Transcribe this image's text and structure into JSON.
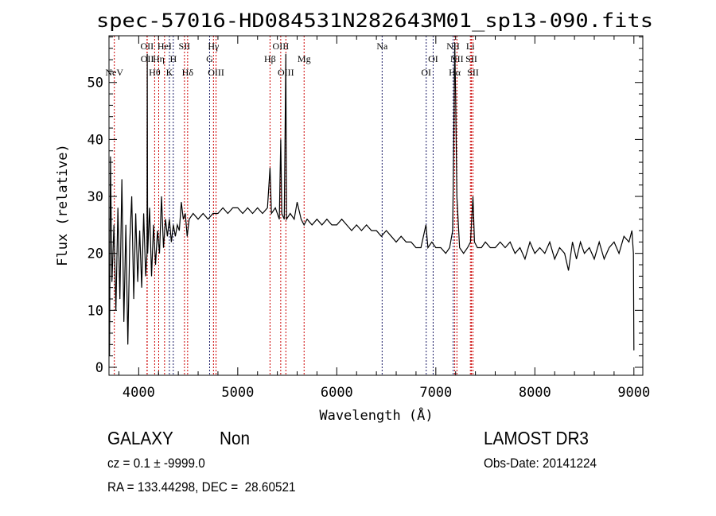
{
  "chart_data": {
    "type": "line",
    "title": "spec-57016-HD084531N282643M01_sp13-090.fits",
    "xlabel": "Wavelength (Å)",
    "ylabel": "Flux (relative)",
    "xlim": [
      3700,
      9090
    ],
    "ylim": [
      -1.4,
      58.2
    ],
    "xticks": [
      4000,
      5000,
      6000,
      7000,
      8000,
      9000
    ],
    "yticks": [
      0,
      10,
      20,
      30,
      40,
      50
    ],
    "grid": false,
    "series": [
      {
        "name": "spectrum",
        "color": "#000000",
        "points": [
          [
            3705,
            2
          ],
          [
            3715,
            37
          ],
          [
            3730,
            15
          ],
          [
            3750,
            25
          ],
          [
            3770,
            10
          ],
          [
            3790,
            28
          ],
          [
            3810,
            12
          ],
          [
            3830,
            33
          ],
          [
            3850,
            8
          ],
          [
            3870,
            25
          ],
          [
            3890,
            4
          ],
          [
            3910,
            22
          ],
          [
            3930,
            30
          ],
          [
            3950,
            12
          ],
          [
            3970,
            27
          ],
          [
            3990,
            15
          ],
          [
            4010,
            24
          ],
          [
            4030,
            14
          ],
          [
            4050,
            27
          ],
          [
            4070,
            16
          ],
          [
            4084,
            20
          ],
          [
            4086,
            55
          ],
          [
            4090,
            20
          ],
          [
            4110,
            28
          ],
          [
            4130,
            16
          ],
          [
            4150,
            25
          ],
          [
            4170,
            18
          ],
          [
            4190,
            24
          ],
          [
            4210,
            20
          ],
          [
            4230,
            30
          ],
          [
            4250,
            21
          ],
          [
            4270,
            26
          ],
          [
            4290,
            23
          ],
          [
            4310,
            26
          ],
          [
            4330,
            22
          ],
          [
            4350,
            25
          ],
          [
            4370,
            23
          ],
          [
            4390,
            25
          ],
          [
            4410,
            24
          ],
          [
            4430,
            29
          ],
          [
            4450,
            26
          ],
          [
            4470,
            27
          ],
          [
            4490,
            23
          ],
          [
            4510,
            26
          ],
          [
            4550,
            27
          ],
          [
            4600,
            26
          ],
          [
            4650,
            27
          ],
          [
            4700,
            26
          ],
          [
            4750,
            27
          ],
          [
            4800,
            27
          ],
          [
            4850,
            28
          ],
          [
            4900,
            27
          ],
          [
            4950,
            28
          ],
          [
            5000,
            28
          ],
          [
            5050,
            27
          ],
          [
            5100,
            28
          ],
          [
            5150,
            27
          ],
          [
            5200,
            28
          ],
          [
            5250,
            27
          ],
          [
            5300,
            28
          ],
          [
            5326,
            35
          ],
          [
            5340,
            27
          ],
          [
            5380,
            28
          ],
          [
            5420,
            26
          ],
          [
            5434,
            40
          ],
          [
            5445,
            27
          ],
          [
            5470,
            26
          ],
          [
            5486,
            55
          ],
          [
            5492,
            26
          ],
          [
            5530,
            27
          ],
          [
            5570,
            26
          ],
          [
            5600,
            29
          ],
          [
            5640,
            26
          ],
          [
            5670,
            25
          ],
          [
            5700,
            26
          ],
          [
            5750,
            25
          ],
          [
            5800,
            26
          ],
          [
            5850,
            25
          ],
          [
            5900,
            26
          ],
          [
            5950,
            25
          ],
          [
            6000,
            25
          ],
          [
            6050,
            26
          ],
          [
            6100,
            25
          ],
          [
            6150,
            24
          ],
          [
            6200,
            25
          ],
          [
            6250,
            24
          ],
          [
            6300,
            25
          ],
          [
            6350,
            24
          ],
          [
            6400,
            24
          ],
          [
            6450,
            23
          ],
          [
            6500,
            24
          ],
          [
            6550,
            23
          ],
          [
            6600,
            22
          ],
          [
            6650,
            23
          ],
          [
            6700,
            22
          ],
          [
            6750,
            22
          ],
          [
            6800,
            21
          ],
          [
            6850,
            21
          ],
          [
            6900,
            25
          ],
          [
            6920,
            21
          ],
          [
            6960,
            22
          ],
          [
            7000,
            21
          ],
          [
            7050,
            21
          ],
          [
            7100,
            20
          ],
          [
            7140,
            21
          ],
          [
            7170,
            24
          ],
          [
            7185,
            45
          ],
          [
            7191,
            57
          ],
          [
            7200,
            48
          ],
          [
            7213,
            30
          ],
          [
            7240,
            21
          ],
          [
            7280,
            20
          ],
          [
            7320,
            21
          ],
          [
            7350,
            22
          ],
          [
            7375,
            30
          ],
          [
            7390,
            22
          ],
          [
            7420,
            21
          ],
          [
            7460,
            21
          ],
          [
            7500,
            22
          ],
          [
            7550,
            21
          ],
          [
            7600,
            21
          ],
          [
            7650,
            22
          ],
          [
            7700,
            21
          ],
          [
            7750,
            22
          ],
          [
            7800,
            20
          ],
          [
            7850,
            21
          ],
          [
            7900,
            19
          ],
          [
            7950,
            22
          ],
          [
            8000,
            20
          ],
          [
            8050,
            21
          ],
          [
            8100,
            20
          ],
          [
            8150,
            22
          ],
          [
            8200,
            19
          ],
          [
            8250,
            21
          ],
          [
            8300,
            20
          ],
          [
            8340,
            17
          ],
          [
            8380,
            22
          ],
          [
            8420,
            19
          ],
          [
            8460,
            22
          ],
          [
            8500,
            20
          ],
          [
            8550,
            21
          ],
          [
            8600,
            19
          ],
          [
            8650,
            22
          ],
          [
            8700,
            19
          ],
          [
            8750,
            21
          ],
          [
            8800,
            22
          ],
          [
            8850,
            20
          ],
          [
            8900,
            23
          ],
          [
            8950,
            22
          ],
          [
            8980,
            24
          ],
          [
            8995,
            20
          ],
          [
            9000,
            3
          ]
        ]
      }
    ],
    "annotations": [
      {
        "label": "NeV",
        "wavelength": 3754,
        "row": 2,
        "color": "#cc0000"
      },
      {
        "label": "OII",
        "wavelength": 4084,
        "row": 0,
        "color": "#cc0000"
      },
      {
        "label": "OII",
        "wavelength": 4086,
        "row": 1,
        "color": "#cc0000"
      },
      {
        "label": "Hθ",
        "wavelength": 4161,
        "row": 2,
        "color": "#cc0000"
      },
      {
        "label": "Hη",
        "wavelength": 4202,
        "row": 1,
        "color": "#cc0000"
      },
      {
        "label": "HeI",
        "wavelength": 4261,
        "row": 0,
        "color": "#cc0000"
      },
      {
        "label": "K",
        "wavelength": 4310,
        "row": 2,
        "color": "#1a1a66"
      },
      {
        "label": "H",
        "wavelength": 4349,
        "row": 1,
        "color": "#1a1a66"
      },
      {
        "label": "SII",
        "wavelength": 4462,
        "row": 0,
        "color": "#cc0000"
      },
      {
        "label": "Hδ",
        "wavelength": 4494,
        "row": 2,
        "color": "#cc0000"
      },
      {
        "label": "G",
        "wavelength": 4716,
        "row": 1,
        "color": "#1a1a66"
      },
      {
        "label": "Hγ",
        "wavelength": 4755,
        "row": 0,
        "color": "#cc0000"
      },
      {
        "label": "OIII",
        "wavelength": 4781,
        "row": 2,
        "color": "#cc0000"
      },
      {
        "label": "Hβ",
        "wavelength": 5326,
        "row": 1,
        "color": "#cc0000"
      },
      {
        "label": "OIII",
        "wavelength": 5434,
        "row": 0,
        "color": "#cc0000"
      },
      {
        "label": "OIII",
        "wavelength": 5486,
        "row": 2,
        "color": "#cc0000"
      },
      {
        "label": "Mg",
        "wavelength": 5670,
        "row": 1,
        "color": "#cc0000"
      },
      {
        "label": "Na",
        "wavelength": 6458,
        "row": 0,
        "color": "#1a1a66"
      },
      {
        "label": "OI",
        "wavelength": 6903,
        "row": 2,
        "color": "#1a1a66"
      },
      {
        "label": "OI",
        "wavelength": 6973,
        "row": 1,
        "color": "#1a1a66"
      },
      {
        "label": "NII",
        "wavelength": 7175,
        "row": 0,
        "color": "#1a1a66"
      },
      {
        "label": "Hα",
        "wavelength": 7191,
        "row": 2,
        "color": "#cc0000"
      },
      {
        "label": "NII",
        "wavelength": 7213,
        "row": 1,
        "color": "#cc0000"
      },
      {
        "label": "Li",
        "wavelength": 7349,
        "row": 0,
        "color": "#cc0000"
      },
      {
        "label": "SII",
        "wavelength": 7359,
        "row": 1,
        "color": "#cc0000"
      },
      {
        "label": "SII",
        "wavelength": 7375,
        "row": 2,
        "color": "#cc0000"
      }
    ]
  },
  "info": {
    "class": "GALAXY",
    "subclass": "Non",
    "survey": "LAMOST DR3",
    "cz": "cz = 0.1 ± -9999.0",
    "obs_date": "Obs-Date: 20141224",
    "coords": "RA = 133.44298, DEC =  28.60521"
  }
}
